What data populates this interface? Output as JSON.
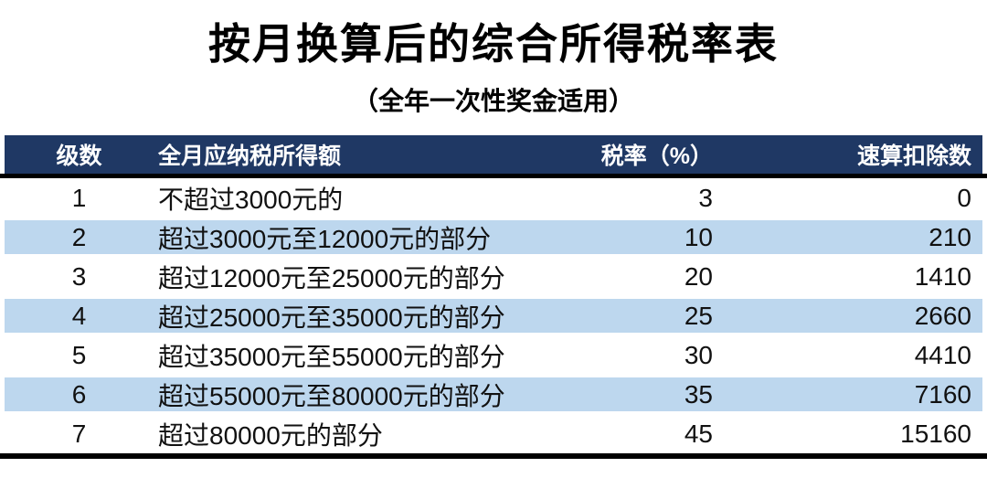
{
  "page": {
    "title": "按月换算后的综合所得税率表",
    "subtitle": "（全年一次性奖金适用）"
  },
  "table": {
    "columns": [
      {
        "label": "级数"
      },
      {
        "label": "全月应纳税所得额"
      },
      {
        "label": "税率（%）"
      },
      {
        "label": "速算扣除数"
      }
    ],
    "rows": [
      {
        "level": "1",
        "income": "不超过3000元的",
        "rate": "3",
        "deduction": "0"
      },
      {
        "level": "2",
        "income": "超过3000元至12000元的部分",
        "rate": "10",
        "deduction": "210"
      },
      {
        "level": "3",
        "income": "超过12000元至25000元的部分",
        "rate": "20",
        "deduction": "1410"
      },
      {
        "level": "4",
        "income": "超过25000元至35000元的部分",
        "rate": "25",
        "deduction": "2660"
      },
      {
        "level": "5",
        "income": "超过35000元至55000元的部分",
        "rate": "30",
        "deduction": "4410"
      },
      {
        "level": "6",
        "income": "超过55000元至80000元的部分",
        "rate": "35",
        "deduction": "7160"
      },
      {
        "level": "7",
        "income": "超过80000元的部分",
        "rate": "45",
        "deduction": "15160"
      }
    ]
  },
  "colors": {
    "header_bg": "#1F3864",
    "header_text": "#FFFFFF",
    "row_alt_bg": "#BDD7EE",
    "rule": "#000000"
  }
}
